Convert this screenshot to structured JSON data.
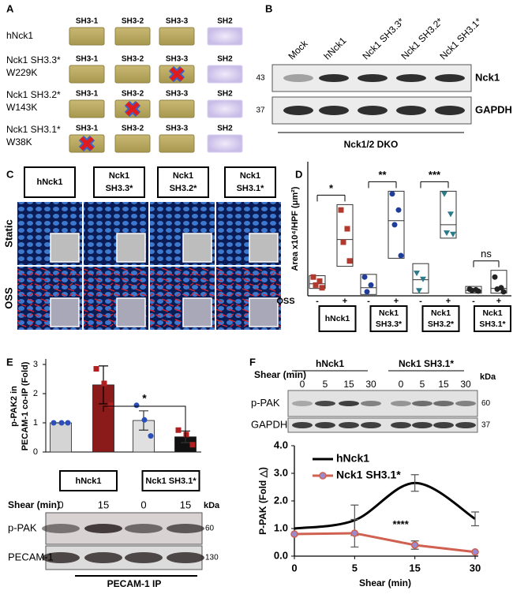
{
  "panel_labels": [
    "A",
    "B",
    "C",
    "D",
    "E",
    "F"
  ],
  "panel_a": {
    "domains": [
      "SH3-1",
      "SH3-2",
      "SH3-3",
      "SH2"
    ],
    "constructs": [
      {
        "lines": [
          "hNck1"
        ]
      },
      {
        "lines": [
          "Nck1 SH3.3*",
          "W229K"
        ],
        "mutated": "SH3-3"
      },
      {
        "lines": [
          "Nck1 SH3.2*",
          "W143K"
        ],
        "mutated": "SH3-2"
      },
      {
        "lines": [
          "Nck1 SH3.1*",
          "W38K"
        ],
        "mutated": "SH3-1"
      }
    ]
  },
  "panel_b": {
    "lanes": [
      "Mock",
      "hNck1",
      "Nck1 SH3.3*",
      "Nck1 SH3.2*",
      "Nck1 SH3.1*"
    ],
    "blots": [
      {
        "label": "Nck1",
        "kda": 43
      },
      {
        "label": "GAPDH",
        "kda": 37
      }
    ],
    "cell_line": "Nck1/2 DKO"
  },
  "panel_c": {
    "columns": [
      [
        "hNck1"
      ],
      [
        "Nck1",
        "SH3.3*"
      ],
      [
        "Nck1",
        "SH3.2*"
      ],
      [
        "Nck1",
        "SH3.1*"
      ]
    ],
    "rows": [
      "Static",
      "OSS"
    ]
  },
  "panel_e_blot": {
    "shear_label": "Shear (min)",
    "lanes": [
      0,
      15,
      0,
      15
    ],
    "kda_label": "kDa",
    "blots": [
      {
        "label": "p-PAK",
        "kda": 60
      },
      {
        "label": "PECAM-1",
        "kda": 130
      }
    ],
    "ip_label": "PECAM-1 IP"
  },
  "panel_f_blot": {
    "groups": [
      "hNck1",
      "Nck1 SH3.1*"
    ],
    "shear_label": "Shear (min)",
    "lanes": [
      0,
      5,
      15,
      30,
      0,
      5,
      15,
      30
    ],
    "kda_label": "kDa",
    "blots": [
      {
        "label": "p-PAK",
        "kda": 60
      },
      {
        "label": "GAPDH",
        "kda": 37
      }
    ]
  },
  "chart_data": [
    {
      "type": "box",
      "ylabel": "Area x10⁴/HPF (μm²)",
      "condition_label": "OSS",
      "conditions": [
        "-",
        "+"
      ],
      "ylim": [
        0,
        10
      ],
      "groups": [
        {
          "label": [
            "hNck1"
          ],
          "color": "#b03a2e",
          "marker": "square",
          "significance": "*",
          "boxes": [
            {
              "points": [
                1.4,
                1.1,
                0.8,
                0.6
              ],
              "q1": 0.55,
              "median": 0.9,
              "q3": 1.5
            },
            {
              "points": [
                6.4,
                5.0,
                4.0,
                2.6
              ],
              "q1": 2.2,
              "median": 4.2,
              "q3": 6.8
            }
          ]
        },
        {
          "label": [
            "Nck1",
            "SH3.3*"
          ],
          "color": "#1f3d99",
          "marker": "circle",
          "significance": "**",
          "boxes": [
            {
              "points": [
                1.4,
                0.8,
                0.3
              ],
              "q1": 0.1,
              "median": 0.6,
              "q3": 1.6
            },
            {
              "points": [
                7.6,
                6.4,
                5.3,
                3.0
              ],
              "q1": 2.8,
              "median": 5.6,
              "q3": 7.8
            }
          ]
        },
        {
          "label": [
            "Nck1",
            "SH3.2*"
          ],
          "color": "#2b7a8c",
          "marker": "triangle",
          "significance": "***",
          "boxes": [
            {
              "points": [
                1.7,
                1.25,
                0.4
              ],
              "q1": 0.2,
              "median": 1.2,
              "q3": 2.4
            },
            {
              "points": [
                7.6,
                6.1,
                4.7,
                4.6
              ],
              "q1": 4.3,
              "median": 5.3,
              "q3": 7.8
            }
          ]
        },
        {
          "label": [
            "Nck1",
            "SH3.1*"
          ],
          "color": "#222222",
          "marker": "circle",
          "significance": "ns",
          "boxes": [
            {
              "points": [
                0.5,
                0.45,
                0.4,
                0.35
              ],
              "q1": 0.2,
              "median": 0.4,
              "q3": 0.7
            },
            {
              "points": [
                1.4,
                0.6,
                0.5,
                0.3
              ],
              "q1": 0.2,
              "median": 0.55,
              "q3": 1.9
            }
          ]
        }
      ]
    },
    {
      "type": "bar",
      "ylabel": [
        "p-PAK2 in",
        "PECAM-1 co-IP (Fold)"
      ],
      "ylim": [
        0,
        3
      ],
      "yticks": [
        0,
        1,
        2,
        3
      ],
      "groups": [
        "hNck1",
        "Nck1 SH3.1*"
      ],
      "values": [
        1.0,
        2.3,
        1.08,
        0.52
      ],
      "errors": [
        0,
        0.65,
        0.33,
        0.2
      ],
      "colors": [
        "#d4d4d4",
        "#8b1a1a",
        "#e0e0e0",
        "#111111"
      ],
      "points": [
        [
          1,
          1,
          1
        ],
        [
          2.85,
          2.35,
          1.6
        ],
        [
          1.6,
          1.1,
          0.55
        ],
        [
          0.75,
          0.6,
          0.25
        ]
      ],
      "point_colors": [
        "#2a4fb8",
        "#b02020",
        "#2a4fb8",
        "#b02020"
      ],
      "significance": "*"
    },
    {
      "type": "line",
      "xlabel": "Shear (min)",
      "ylabel": "P-PAK (Fold △)",
      "categories": [
        0,
        5,
        15,
        30
      ],
      "ylim": [
        0,
        4
      ],
      "yticks": [
        {
          "value": 0,
          "label": "0.0"
        },
        {
          "value": 1,
          "label": "1.0"
        },
        {
          "value": 2,
          "label": "2.0"
        },
        {
          "value": 3,
          "label": "3.0"
        },
        {
          "value": 4,
          "label": "4.0"
        }
      ],
      "series": [
        {
          "name": "hNck1",
          "color": "#000000",
          "smooth": true,
          "values": [
            1.0,
            1.3,
            2.65,
            1.35
          ],
          "errors": [
            null,
            0.55,
            0.3,
            0.25
          ]
        },
        {
          "name": "Nck1 SH3.1*",
          "color": "#d06050",
          "marker": "circle",
          "values": [
            0.8,
            0.83,
            0.4,
            0.15
          ],
          "errors": [
            null,
            0.5,
            0.15,
            null
          ]
        }
      ],
      "annotation": "****"
    }
  ]
}
